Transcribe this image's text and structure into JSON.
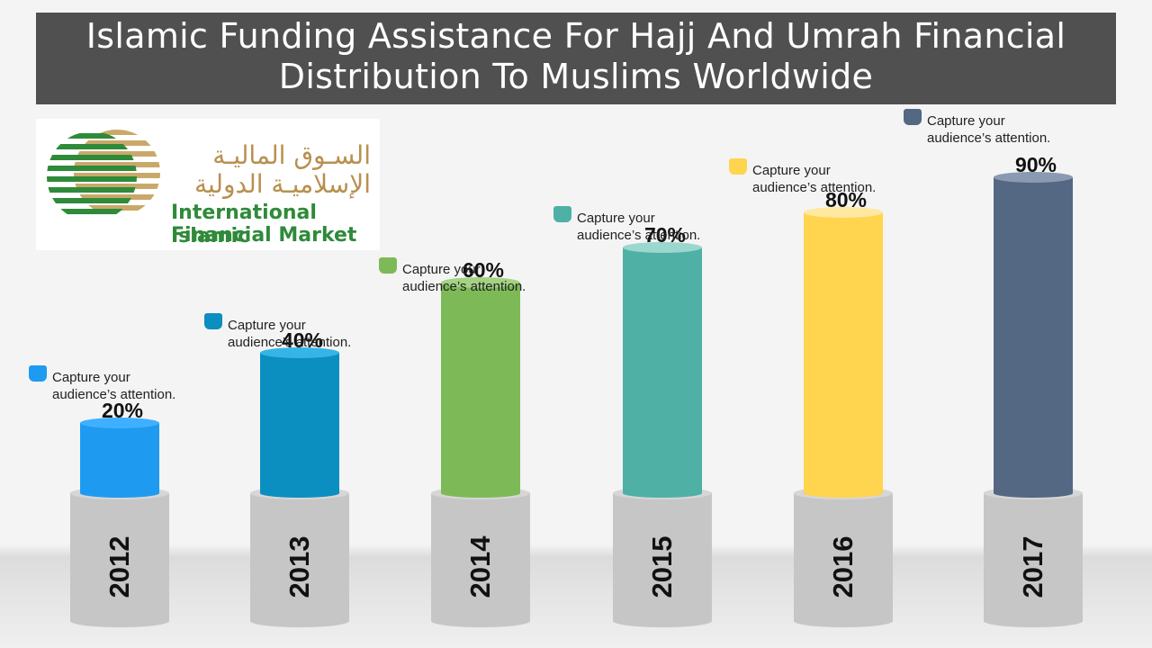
{
  "title": "Islamic Funding  Assistance For Hajj And Umrah Financial Distribution To Muslims Worldwide",
  "logo": {
    "arabic_line1": "السـوق الماليـة",
    "arabic_line2": "الإسلاميـة الدولية",
    "english_line1": "International Islamic",
    "english_line2": "Financial Market"
  },
  "callout_text_line1": "Capture your",
  "callout_text_line2": "audience’s attention.",
  "colors": {
    "base": "#c6c6c6",
    "base_top": "#d6d6d6",
    "ground": "#e0e0e0"
  },
  "chart_data": {
    "type": "bar",
    "categories": [
      "2012",
      "2013",
      "2014",
      "2015",
      "2016",
      "2017"
    ],
    "values": [
      20,
      40,
      60,
      70,
      80,
      90
    ],
    "value_labels": [
      "20%",
      "40%",
      "60%",
      "70%",
      "80%",
      "90%"
    ],
    "colors": [
      "#1e9bf0",
      "#0a8fc0",
      "#7dba57",
      "#4fb0a5",
      "#ffd44f",
      "#546783"
    ],
    "top_colors": [
      "#3fb0ff",
      "#35b5e6",
      "#a4d282",
      "#9bd6cf",
      "#ffe8a0",
      "#8a9ab2"
    ],
    "ylim": [
      0,
      100
    ]
  }
}
